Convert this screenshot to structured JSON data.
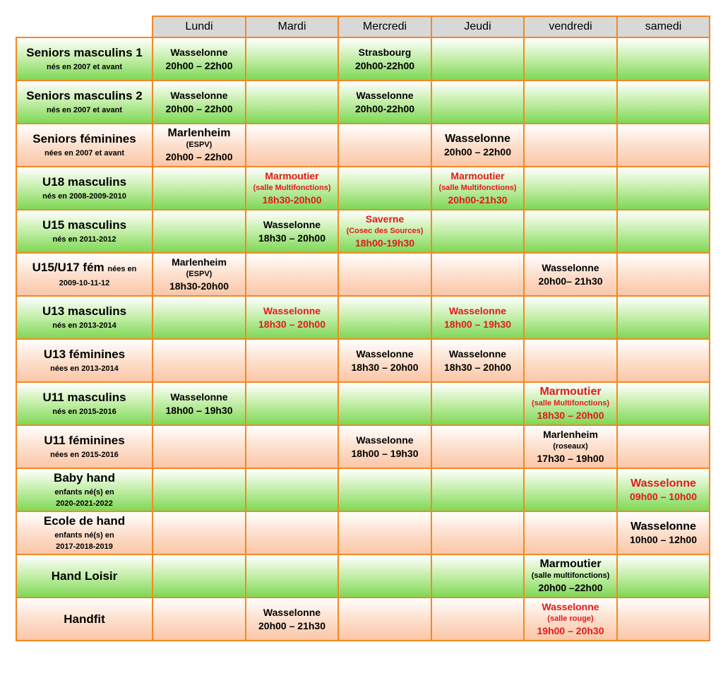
{
  "days": [
    "Lundi",
    "Mardi",
    "Mercredi",
    "Jeudi",
    "vendredi",
    "samedi"
  ],
  "colors": {
    "border": "#f08a24",
    "header": "#d8d8d8",
    "green": "#7fd856",
    "peach": "#fbc6a7",
    "red_text": "#e01b1b"
  },
  "rows": [
    {
      "name": "Seniors masculins 1",
      "sub": "nés en 2007 et avant",
      "bg": "green",
      "slots": [
        {
          "loc": "Wasselonne",
          "time": "20h00 – 22h00"
        },
        null,
        {
          "loc": "Strasbourg",
          "time": "20h00-22h00"
        },
        null,
        null,
        null
      ]
    },
    {
      "name": "Seniors masculins 2",
      "sub": "nés en 2007 et avant",
      "bg": "green",
      "slots": [
        {
          "loc": "Wasselonne",
          "time": "20h00 – 22h00"
        },
        null,
        {
          "loc": "Wasselonne",
          "time": "20h00-22h00"
        },
        null,
        null,
        null
      ]
    },
    {
      "name": "Seniors féminines",
      "sub": "nées en 2007 et avant",
      "bg": "peach",
      "slots": [
        {
          "loc": "Marlenheim",
          "note": "(ESPV)",
          "time": "20h00 – 22h00",
          "big": true
        },
        null,
        null,
        {
          "loc": "Wasselonne",
          "time": "20h00 – 22h00",
          "big": true
        },
        null,
        null
      ]
    },
    {
      "name": "U18 masculins",
      "sub": "nés en 2008-2009-2010",
      "bg": "green",
      "slots": [
        null,
        {
          "loc": "Marmoutier",
          "note": "(salle Multifonctions)",
          "time": "18h30-20h00",
          "red": true
        },
        null,
        {
          "loc": "Marmoutier",
          "note": "(salle Multifonctions)",
          "time": "20h00-21h30",
          "red": true
        },
        null,
        null
      ]
    },
    {
      "name": "U15 masculins",
      "sub": "nés en 2011-2012",
      "bg": "green",
      "slots": [
        null,
        {
          "loc": "Wasselonne",
          "time": "18h30 – 20h00"
        },
        {
          "loc": "Saverne",
          "note": "(Cosec des Sources)",
          "time": "18h00-19h30",
          "red": true
        },
        null,
        null,
        null
      ]
    },
    {
      "name": "U15/U17 fém",
      "name_suffix": "nées en",
      "sub": "2009-10-11-12",
      "bg": "peach",
      "slots": [
        {
          "loc": "Marlenheim",
          "note": "(ESPV)",
          "time": "18h30-20h00"
        },
        null,
        null,
        null,
        {
          "loc": "Wasselonne",
          "time": "20h00– 21h30"
        },
        null
      ]
    },
    {
      "name": "U13 masculins",
      "sub": "nés en 2013-2014",
      "bg": "green",
      "slots": [
        null,
        {
          "loc": "Wasselonne",
          "time": "18h30 – 20h00",
          "red": true
        },
        null,
        {
          "loc": "Wasselonne",
          "time": "18h00 – 19h30",
          "red": true
        },
        null,
        null
      ]
    },
    {
      "name": "U13 féminines",
      "sub": "nées en 2013-2014",
      "bg": "peach",
      "slots": [
        null,
        null,
        {
          "loc": "Wasselonne",
          "time": "18h30 – 20h00"
        },
        {
          "loc": "Wasselonne",
          "time": "18h30 – 20h00"
        },
        null,
        null
      ]
    },
    {
      "name": "U11 masculins",
      "sub": "nés en 2015-2016",
      "bg": "green",
      "slots": [
        {
          "loc": "Wasselonne",
          "time": "18h00 – 19h30"
        },
        null,
        null,
        null,
        {
          "loc": "Marmoutier",
          "note": "(salle Multifonctions)",
          "time": "18h30 – 20h00",
          "red": true,
          "big": true
        },
        null
      ]
    },
    {
      "name": "U11 féminines",
      "sub": "nées en 2015-2016",
      "bg": "peach",
      "slots": [
        null,
        null,
        {
          "loc": "Wasselonne",
          "time": "18h00 – 19h30"
        },
        null,
        {
          "loc": "Marlenheim",
          "note": "(roseaux)",
          "time": "17h30 – 19h00"
        },
        null
      ]
    },
    {
      "name": "Baby hand",
      "sub": "enfants né(s) en",
      "sub2": "2020-2021-2022",
      "bg": "green",
      "slots": [
        null,
        null,
        null,
        null,
        null,
        {
          "loc": "Wasselonne",
          "time": "09h00 – 10h00",
          "red": true,
          "big": true
        }
      ]
    },
    {
      "name": "Ecole de hand",
      "sub": "enfants né(s) en",
      "sub2": "2017-2018-2019",
      "bg": "peach",
      "slots": [
        null,
        null,
        null,
        null,
        null,
        {
          "loc": "Wasselonne",
          "time": "10h00 – 12h00",
          "big": true
        }
      ]
    },
    {
      "name": "Hand Loisir",
      "bg": "green",
      "slots": [
        null,
        null,
        null,
        null,
        {
          "loc": "Marmoutier",
          "note": "(salle multifonctions)",
          "time": "20h00 –22h00",
          "big": true
        },
        null
      ]
    },
    {
      "name": "Handfit",
      "bg": "peach",
      "slots": [
        null,
        {
          "loc": "Wasselonne",
          "time": "20h00 – 21h30"
        },
        null,
        null,
        {
          "loc": "Wasselonne",
          "note": "(salle rouge)",
          "time": "19h00 – 20h30",
          "red": true
        },
        null
      ]
    }
  ]
}
